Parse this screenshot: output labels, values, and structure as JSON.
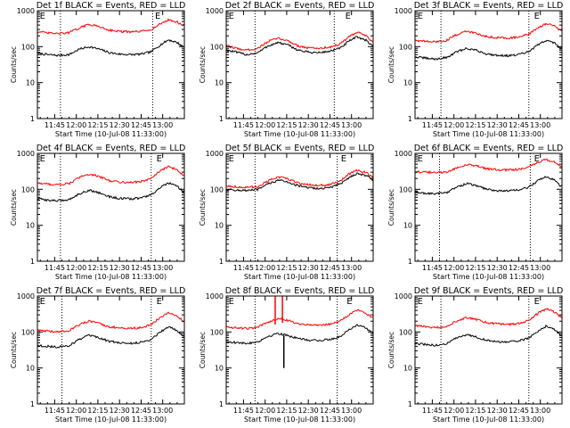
{
  "colors": {
    "events": "#000000",
    "lld": "#ff0000",
    "axes": "#000000",
    "background": "#ffffff"
  },
  "chart_data": [
    {
      "type": "line",
      "title": "Det 1f BLACK = Events, RED = LLD",
      "xlabel": "Start Time (10-Jul-08 11:33:00)",
      "ylabel": "Counts/sec",
      "x_ticks": [
        "11:45",
        "12:00",
        "12:15",
        "12:30",
        "12:45",
        "13:00"
      ],
      "y_ticks": [
        "1",
        "10",
        "100",
        "1000"
      ],
      "ylim": [
        1,
        1000
      ],
      "yscale": "log",
      "markers": [
        "E",
        "E"
      ],
      "marker_times": [
        "11:34",
        "12:54"
      ],
      "dotted_times": [
        "11:49",
        "12:53"
      ],
      "series": [
        {
          "name": "Events",
          "x": [
            "11:33",
            "11:40",
            "11:47",
            "11:55",
            "12:02",
            "12:09",
            "12:16",
            "12:23",
            "12:30",
            "12:38",
            "12:45",
            "12:52",
            "12:58",
            "13:04",
            "13:10",
            "13:14"
          ],
          "values": [
            65,
            60,
            57,
            60,
            85,
            100,
            85,
            68,
            62,
            60,
            62,
            72,
            110,
            155,
            130,
            100
          ]
        },
        {
          "name": "LLD",
          "x": [
            "11:33",
            "11:40",
            "11:47",
            "11:55",
            "12:02",
            "12:09",
            "12:16",
            "12:23",
            "12:30",
            "12:38",
            "12:45",
            "12:52",
            "12:58",
            "13:04",
            "13:10",
            "13:14"
          ],
          "values": [
            260,
            240,
            230,
            245,
            330,
            420,
            360,
            290,
            265,
            255,
            265,
            300,
            420,
            560,
            480,
            400
          ]
        }
      ]
    },
    {
      "type": "line",
      "title": "Det 2f BLACK = Events, RED = LLD",
      "xlabel": "Start Time (10-Jul-08 11:33:00)",
      "ylabel": "Counts/sec",
      "x_ticks": [
        "11:45",
        "12:00",
        "12:15",
        "12:30",
        "12:45",
        "13:00"
      ],
      "y_ticks": [
        "1",
        "10",
        "100",
        "1000"
      ],
      "ylim": [
        1,
        1000
      ],
      "yscale": "log",
      "markers": [
        "E",
        "E"
      ],
      "marker_times": [
        "11:34",
        "12:55"
      ],
      "dotted_times": [
        "11:53",
        "12:48"
      ],
      "series": [
        {
          "name": "Events",
          "x": [
            "11:33",
            "11:40",
            "11:47",
            "11:55",
            "12:02",
            "12:09",
            "12:16",
            "12:23",
            "12:30",
            "12:38",
            "12:45",
            "12:52",
            "12:58",
            "13:04",
            "13:10",
            "13:14"
          ],
          "values": [
            80,
            70,
            60,
            68,
            105,
            130,
            110,
            80,
            70,
            68,
            75,
            90,
            140,
            190,
            150,
            110
          ]
        },
        {
          "name": "LLD",
          "x": [
            "11:33",
            "11:40",
            "11:47",
            "11:55",
            "12:02",
            "12:09",
            "12:16",
            "12:23",
            "12:30",
            "12:38",
            "12:45",
            "12:52",
            "12:58",
            "13:04",
            "13:10",
            "13:14"
          ],
          "values": [
            105,
            90,
            80,
            90,
            140,
            170,
            145,
            105,
            92,
            90,
            98,
            118,
            185,
            250,
            200,
            145
          ]
        }
      ]
    },
    {
      "type": "line",
      "title": "Det 3f BLACK = Events, RED = LLD",
      "xlabel": "Start Time (10-Jul-08 11:33:00)",
      "ylabel": "Counts/sec",
      "x_ticks": [
        "11:45",
        "12:00",
        "12:15",
        "12:30",
        "12:45",
        "13:00"
      ],
      "y_ticks": [
        "1",
        "10",
        "100",
        "1000"
      ],
      "ylim": [
        1,
        1000
      ],
      "yscale": "log",
      "markers": [
        "E",
        "E"
      ],
      "marker_times": [
        "11:34",
        "12:55"
      ],
      "dotted_times": [
        "11:51",
        "12:52"
      ],
      "series": [
        {
          "name": "Events",
          "x": [
            "11:33",
            "11:40",
            "11:47",
            "11:55",
            "12:02",
            "12:09",
            "12:16",
            "12:23",
            "12:30",
            "12:38",
            "12:45",
            "12:52",
            "12:58",
            "13:04",
            "13:10",
            "13:14"
          ],
          "values": [
            52,
            48,
            45,
            50,
            72,
            90,
            78,
            62,
            58,
            56,
            60,
            72,
            110,
            150,
            125,
            90
          ]
        },
        {
          "name": "LLD",
          "x": [
            "11:33",
            "11:40",
            "11:47",
            "11:55",
            "12:02",
            "12:09",
            "12:16",
            "12:23",
            "12:30",
            "12:38",
            "12:45",
            "12:52",
            "12:58",
            "13:04",
            "13:10",
            "13:14"
          ],
          "values": [
            150,
            140,
            135,
            150,
            220,
            270,
            230,
            190,
            180,
            175,
            185,
            220,
            330,
            440,
            370,
            270
          ]
        }
      ]
    },
    {
      "type": "line",
      "title": "Det 4f BLACK = Events, RED = LLD",
      "xlabel": "Start Time (10-Jul-08 11:33:00)",
      "ylabel": "Counts/sec",
      "x_ticks": [
        "11:45",
        "12:00",
        "12:15",
        "12:30",
        "12:45",
        "13:00"
      ],
      "y_ticks": [
        "1",
        "10",
        "100",
        "1000"
      ],
      "ylim": [
        1,
        1000
      ],
      "yscale": "log",
      "markers": [
        "E",
        "E"
      ],
      "marker_times": [
        "11:34",
        "12:55"
      ],
      "dotted_times": [
        "11:49",
        "12:52"
      ],
      "series": [
        {
          "name": "Events",
          "x": [
            "11:33",
            "11:40",
            "11:47",
            "11:55",
            "12:02",
            "12:09",
            "12:16",
            "12:23",
            "12:30",
            "12:38",
            "12:45",
            "12:52",
            "12:58",
            "13:04",
            "13:10",
            "13:14"
          ],
          "values": [
            55,
            50,
            48,
            52,
            75,
            95,
            80,
            62,
            56,
            54,
            58,
            70,
            110,
            150,
            120,
            85
          ]
        },
        {
          "name": "LLD",
          "x": [
            "11:33",
            "11:40",
            "11:47",
            "11:55",
            "12:02",
            "12:09",
            "12:16",
            "12:23",
            "12:30",
            "12:38",
            "12:45",
            "12:52",
            "12:58",
            "13:04",
            "13:10",
            "13:14"
          ],
          "values": [
            150,
            140,
            135,
            145,
            210,
            270,
            225,
            175,
            160,
            155,
            165,
            200,
            320,
            430,
            350,
            250
          ]
        }
      ]
    },
    {
      "type": "line",
      "title": "Det 5f BLACK = Events, RED = LLD",
      "xlabel": "Start Time (10-Jul-08 11:33:00)",
      "ylabel": "Counts/sec",
      "x_ticks": [
        "11:45",
        "12:00",
        "12:15",
        "12:30",
        "12:45",
        "13:00"
      ],
      "y_ticks": [
        "1",
        "10",
        "100",
        "1000"
      ],
      "ylim": [
        1,
        1000
      ],
      "yscale": "log",
      "markers": [
        "E",
        "E"
      ],
      "marker_times": [
        "11:34",
        "12:52"
      ],
      "dotted_times": [
        "11:53",
        "12:50"
      ],
      "series": [
        {
          "name": "Events",
          "x": [
            "11:33",
            "11:40",
            "11:47",
            "11:55",
            "12:02",
            "12:09",
            "12:16",
            "12:23",
            "12:30",
            "12:38",
            "12:45",
            "12:52",
            "12:58",
            "13:04",
            "13:10",
            "13:14"
          ],
          "values": [
            100,
            95,
            92,
            98,
            140,
            180,
            160,
            125,
            110,
            105,
            112,
            140,
            210,
            280,
            240,
            190
          ]
        },
        {
          "name": "LLD",
          "x": [
            "11:33",
            "11:40",
            "11:47",
            "11:55",
            "12:02",
            "12:09",
            "12:16",
            "12:23",
            "12:30",
            "12:38",
            "12:45",
            "12:52",
            "12:58",
            "13:04",
            "13:10",
            "13:14"
          ],
          "values": [
            125,
            118,
            112,
            120,
            170,
            220,
            195,
            150,
            135,
            128,
            135,
            170,
            260,
            340,
            290,
            230
          ]
        }
      ]
    },
    {
      "type": "line",
      "title": "Det 6f BLACK = Events, RED = LLD",
      "xlabel": "Start Time (10-Jul-08 11:33:00)",
      "ylabel": "Counts/sec",
      "x_ticks": [
        "11:45",
        "12:00",
        "12:15",
        "12:30",
        "12:45",
        "13:00"
      ],
      "y_ticks": [
        "1",
        "10",
        "100",
        "1000"
      ],
      "ylim": [
        1,
        1000
      ],
      "yscale": "log",
      "markers": [
        "E",
        "E"
      ],
      "marker_times": [
        "11:34",
        "12:55"
      ],
      "dotted_times": [
        "11:50",
        "12:53"
      ],
      "series": [
        {
          "name": "Events",
          "x": [
            "11:33",
            "11:40",
            "11:47",
            "11:55",
            "12:02",
            "12:09",
            "12:16",
            "12:23",
            "12:30",
            "12:38",
            "12:45",
            "12:52",
            "12:58",
            "13:04",
            "13:10",
            "13:14"
          ],
          "values": [
            82,
            78,
            75,
            82,
            115,
            145,
            125,
            100,
            92,
            90,
            96,
            115,
            170,
            230,
            180,
            125
          ]
        },
        {
          "name": "LLD",
          "x": [
            "11:33",
            "11:40",
            "11:47",
            "11:55",
            "12:02",
            "12:09",
            "12:16",
            "12:23",
            "12:30",
            "12:38",
            "12:45",
            "12:52",
            "12:58",
            "13:04",
            "13:10",
            "13:14"
          ],
          "values": [
            310,
            300,
            290,
            300,
            400,
            480,
            440,
            370,
            350,
            345,
            360,
            420,
            560,
            680,
            560,
            420
          ]
        }
      ]
    },
    {
      "type": "line",
      "title": "Det 7f BLACK = Events, RED = LLD",
      "xlabel": "Start Time (10-Jul-08 11:33:00)",
      "ylabel": "Counts/sec",
      "x_ticks": [
        "11:45",
        "12:00",
        "12:15",
        "12:30",
        "12:45",
        "13:00"
      ],
      "y_ticks": [
        "1",
        "10",
        "100",
        "1000"
      ],
      "ylim": [
        1,
        1000
      ],
      "yscale": "log",
      "markers": [
        "E",
        "E"
      ],
      "marker_times": [
        "11:34",
        "12:55"
      ],
      "dotted_times": [
        "11:50",
        "12:52"
      ],
      "series": [
        {
          "name": "Events",
          "x": [
            "11:33",
            "11:40",
            "11:47",
            "11:55",
            "12:02",
            "12:09",
            "12:16",
            "12:23",
            "12:30",
            "12:38",
            "12:45",
            "12:52",
            "12:58",
            "13:04",
            "13:10",
            "13:14"
          ],
          "values": [
            42,
            40,
            38,
            42,
            62,
            80,
            68,
            55,
            50,
            48,
            52,
            62,
            100,
            140,
            110,
            80
          ]
        },
        {
          "name": "LLD",
          "x": [
            "11:33",
            "11:40",
            "11:47",
            "11:55",
            "12:02",
            "12:09",
            "12:16",
            "12:23",
            "12:30",
            "12:38",
            "12:45",
            "12:52",
            "12:58",
            "13:04",
            "13:10",
            "13:14"
          ],
          "values": [
            110,
            105,
            100,
            110,
            160,
            200,
            170,
            140,
            130,
            125,
            132,
            160,
            250,
            340,
            280,
            200
          ]
        }
      ]
    },
    {
      "type": "line",
      "title": "Det 8f BLACK = Events, RED = LLD",
      "xlabel": "Start Time (10-Jul-08 11:33:00)",
      "ylabel": "Counts/sec",
      "x_ticks": [
        "11:45",
        "12:00",
        "12:15",
        "12:30",
        "12:45",
        "13:00"
      ],
      "y_ticks": [
        "1",
        "10",
        "100",
        "1000"
      ],
      "ylim": [
        1,
        1000
      ],
      "yscale": "log",
      "markers": [
        "E",
        "E"
      ],
      "marker_times": [
        "11:34",
        "12:56"
      ],
      "dotted_times": [
        "11:53",
        "12:50"
      ],
      "series": [
        {
          "name": "Events",
          "x": [
            "11:33",
            "11:40",
            "11:47",
            "11:55",
            "12:02",
            "12:09",
            "12:16",
            "12:23",
            "12:30",
            "12:38",
            "12:45",
            "12:52",
            "12:58",
            "13:04",
            "13:10",
            "13:14"
          ],
          "values": [
            55,
            50,
            48,
            54,
            75,
            92,
            80,
            65,
            60,
            58,
            62,
            75,
            115,
            160,
            130,
            95
          ]
        },
        {
          "name": "LLD",
          "x": [
            "11:33",
            "11:40",
            "11:47",
            "11:55",
            "12:02",
            "12:09",
            "12:16",
            "12:23",
            "12:30",
            "12:38",
            "12:45",
            "12:52",
            "12:58",
            "13:04",
            "13:10",
            "13:14"
          ],
          "values": [
            140,
            130,
            125,
            135,
            190,
            240,
            210,
            170,
            160,
            155,
            165,
            200,
            300,
            410,
            340,
            250
          ]
        }
      ],
      "spikes": [
        {
          "series": "LLD",
          "time": "12:07",
          "values": [
            160,
            1000
          ]
        },
        {
          "series": "LLD",
          "time": "12:12",
          "values": [
            180,
            1000
          ]
        },
        {
          "series": "Events",
          "time": "12:13",
          "values": [
            10,
            80
          ]
        }
      ]
    },
    {
      "type": "line",
      "title": "Det 9f BLACK = Events, RED = LLD",
      "xlabel": "Start Time (10-Jul-08 11:33:00)",
      "ylabel": "Counts/sec",
      "x_ticks": [
        "11:45",
        "12:00",
        "12:15",
        "12:30",
        "12:45",
        "13:00"
      ],
      "y_ticks": [
        "1",
        "10",
        "100",
        "1000"
      ],
      "ylim": [
        1,
        1000
      ],
      "yscale": "log",
      "markers": [
        "E",
        "E"
      ],
      "marker_times": [
        "11:34",
        "12:55"
      ],
      "dotted_times": [
        "11:51",
        "12:52"
      ],
      "series": [
        {
          "name": "Events",
          "x": [
            "11:33",
            "11:40",
            "11:47",
            "11:55",
            "12:02",
            "12:09",
            "12:16",
            "12:23",
            "12:30",
            "12:38",
            "12:45",
            "12:52",
            "12:58",
            "13:04",
            "13:10",
            "13:14"
          ],
          "values": [
            48,
            45,
            42,
            48,
            68,
            85,
            72,
            58,
            54,
            52,
            56,
            68,
            105,
            145,
            115,
            82
          ]
        },
        {
          "name": "LLD",
          "x": [
            "11:33",
            "11:40",
            "11:47",
            "11:55",
            "12:02",
            "12:09",
            "12:16",
            "12:23",
            "12:30",
            "12:38",
            "12:45",
            "12:52",
            "12:58",
            "13:04",
            "13:10",
            "13:14"
          ],
          "values": [
            150,
            140,
            132,
            145,
            205,
            255,
            220,
            180,
            168,
            162,
            172,
            210,
            320,
            440,
            360,
            260
          ]
        }
      ]
    }
  ]
}
